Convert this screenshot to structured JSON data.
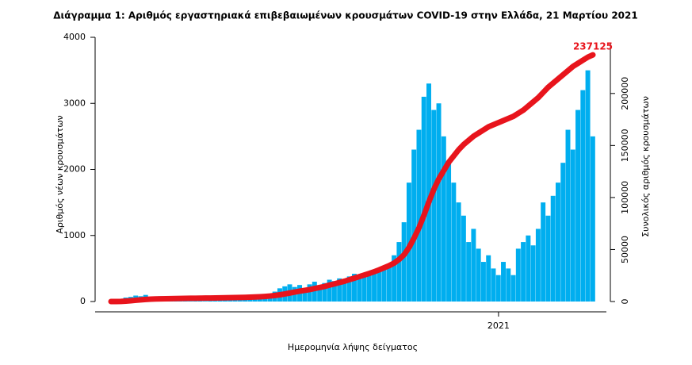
{
  "chart_data": {
    "type": "bar-line",
    "title": "Διάγραμμα 1: Αριθμός εργαστηριακά επιβεβαιωμένων κρουσμάτων COVID-19 στην Ελλάδα, 21 Μαρτίου 2021",
    "x_label": "Ημερομηνία λήψης δείγματος",
    "y_label": "Αριθμός νέων κρουσμάτων",
    "y2_label": "Συνολικός αριθμός κρουσμάτων",
    "categories": [
      null,
      null,
      null,
      null,
      null,
      null,
      null,
      null,
      null,
      null,
      null,
      null,
      null,
      null,
      null,
      null,
      null,
      null,
      null,
      null,
      null,
      null,
      null,
      null,
      null,
      null,
      null,
      null,
      null,
      null,
      null,
      null,
      null,
      null,
      null,
      null,
      null,
      null,
      null,
      null,
      null,
      null,
      null,
      null,
      null,
      null,
      null,
      null,
      null,
      null,
      null,
      null,
      null,
      null,
      null,
      null,
      null,
      null,
      null,
      null,
      null,
      null,
      null,
      null,
      null,
      null,
      null,
      null,
      null,
      null,
      null,
      null,
      null,
      null,
      null,
      null,
      null,
      null,
      "2021",
      null,
      null,
      null,
      null,
      null,
      null,
      null,
      null,
      null,
      null,
      null,
      null,
      null,
      null,
      null,
      null,
      null,
      null,
      null
    ],
    "series": [
      {
        "name": "Αριθμός νέων κρουσμάτων",
        "color": "#00aeef",
        "values": [
          3,
          10,
          30,
          60,
          70,
          90,
          80,
          100,
          60,
          70,
          80,
          60,
          40,
          30,
          20,
          15,
          10,
          15,
          20,
          10,
          12,
          15,
          20,
          25,
          20,
          30,
          25,
          40,
          30,
          45,
          60,
          80,
          120,
          150,
          200,
          230,
          260,
          220,
          250,
          190,
          260,
          300,
          240,
          280,
          330,
          310,
          350,
          300,
          380,
          420,
          350,
          400,
          450,
          420,
          480,
          500,
          560,
          700,
          900,
          1200,
          1800,
          2300,
          2600,
          3100,
          3300,
          2900,
          3000,
          2500,
          2100,
          1800,
          1500,
          1300,
          900,
          1100,
          800,
          600,
          700,
          500,
          400,
          600,
          500,
          400,
          800,
          900,
          1000,
          850,
          1100,
          1500,
          1300,
          1600,
          1800,
          2100,
          2600,
          2300,
          2900,
          3200,
          3500,
          2500
        ]
      },
      {
        "name": "Συνολικός αριθμός κρουσμάτων",
        "color": "#e8141c",
        "axis": "y2",
        "values": [
          3,
          30,
          100,
          400,
          800,
          1200,
          1600,
          2000,
          2300,
          2500,
          2600,
          2700,
          2800,
          2900,
          3000,
          3050,
          3100,
          3150,
          3200,
          3300,
          3350,
          3400,
          3500,
          3600,
          3700,
          3800,
          3900,
          4050,
          4200,
          4400,
          4600,
          4900,
          5300,
          5800,
          6500,
          7300,
          8200,
          9100,
          10000,
          10700,
          11500,
          12500,
          13500,
          14500,
          15800,
          17000,
          18300,
          19500,
          21000,
          22500,
          24000,
          25500,
          27000,
          28700,
          30500,
          32500,
          34500,
          37000,
          40500,
          45000,
          52000,
          61000,
          71000,
          83000,
          96000,
          108000,
          118000,
          126000,
          134000,
          140000,
          146000,
          151000,
          155000,
          159000,
          162000,
          165000,
          168000,
          170000,
          172000,
          174000,
          176000,
          178000,
          181000,
          184000,
          188000,
          192000,
          196000,
          201000,
          206000,
          210000,
          214000,
          218000,
          222000,
          226000,
          229000,
          232000,
          235000,
          237125
        ]
      }
    ],
    "ylim": [
      0,
      4000
    ],
    "yticks": [
      0,
      1000,
      2000,
      3000,
      4000
    ],
    "y2lim": [
      0,
      254000
    ],
    "y2ticks": [
      0,
      50000,
      100000,
      150000,
      200000
    ]
  }
}
